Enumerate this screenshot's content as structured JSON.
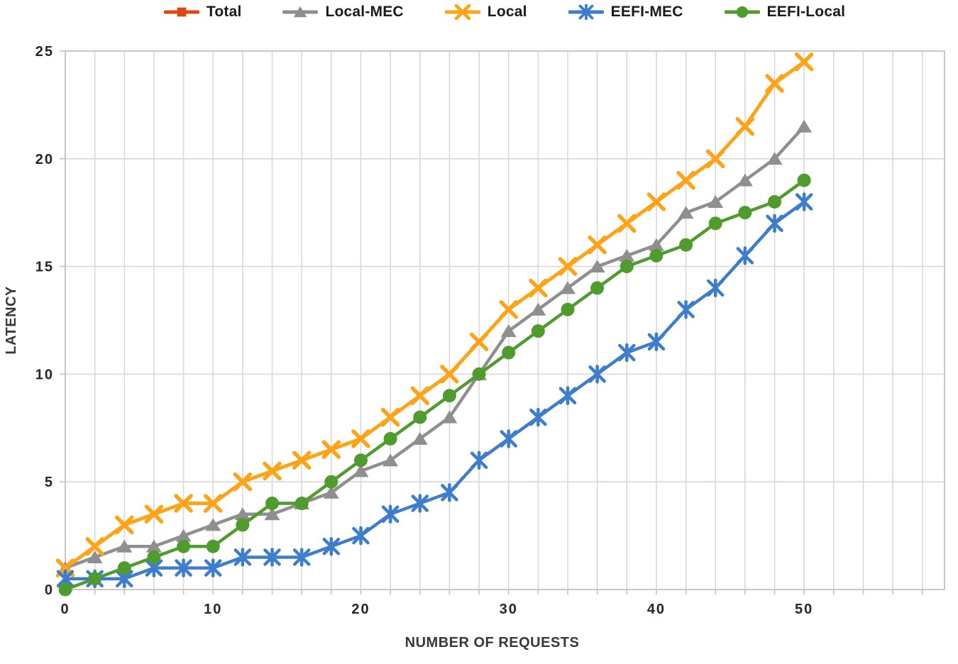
{
  "chart_data": {
    "type": "line",
    "title": "",
    "xlabel": "NUMBER OF REQUESTS",
    "ylabel": "LATENCY",
    "xlim": [
      0,
      59.5
    ],
    "ylim": [
      0,
      25
    ],
    "x_ticks": [
      0,
      10,
      20,
      30,
      40,
      50
    ],
    "y_ticks": [
      0,
      5,
      10,
      15,
      20,
      25
    ],
    "grid": {
      "vertical_step": 2,
      "vertical_extent": 58,
      "horizontal_step": 5,
      "visible": true
    },
    "legend_position": "top-center",
    "x": [
      0,
      2,
      4,
      6,
      8,
      10,
      12,
      14,
      16,
      18,
      20,
      22,
      24,
      26,
      28,
      30,
      32,
      34,
      36,
      38,
      40,
      42,
      44,
      46,
      48,
      50
    ],
    "series": [
      {
        "name": "Total",
        "color": "#DC4A12",
        "marker": "square",
        "visible_in_plot": false,
        "values": []
      },
      {
        "name": "Local-MEC",
        "color": "#8F8F8F",
        "marker": "triangle",
        "visible_in_plot": true,
        "values": [
          1,
          1.5,
          2,
          2,
          2.5,
          3,
          3.5,
          3.5,
          4,
          4.5,
          5.5,
          6,
          7,
          8,
          10,
          12,
          13,
          14,
          15,
          15.5,
          16,
          17.5,
          18,
          19,
          20,
          21.5
        ]
      },
      {
        "name": "Local",
        "color": "#FFA318",
        "marker": "x",
        "visible_in_plot": true,
        "values": [
          1,
          2,
          3,
          3.5,
          4,
          4,
          5,
          5.5,
          6,
          6.5,
          7,
          8,
          9,
          10,
          11.5,
          13,
          14,
          15,
          16,
          17,
          18,
          19,
          20,
          21.5,
          23.5,
          24.5
        ]
      },
      {
        "name": "EEFI-MEC",
        "color": "#3E7DCB",
        "marker": "asterisk",
        "visible_in_plot": true,
        "values": [
          0.5,
          0.5,
          0.5,
          1,
          1,
          1,
          1.5,
          1.5,
          1.5,
          2,
          2.5,
          3.5,
          4,
          4.5,
          6,
          7,
          8,
          9,
          10,
          11,
          11.5,
          13,
          14,
          15.5,
          17,
          18
        ]
      },
      {
        "name": "EEFI-Local",
        "color": "#4F9B2D",
        "marker": "circle",
        "visible_in_plot": true,
        "values": [
          0,
          0.5,
          1,
          1.5,
          2,
          2,
          3,
          4,
          4,
          5,
          6,
          7,
          8,
          9,
          10,
          11,
          12,
          13,
          14,
          15,
          15.5,
          16,
          17,
          17.5,
          18,
          19
        ]
      }
    ],
    "colors": {
      "gridline": "#D8D8D8",
      "border": "#C2C2C2",
      "tick_text": "#262626",
      "axis_title_text": "#383838"
    }
  }
}
